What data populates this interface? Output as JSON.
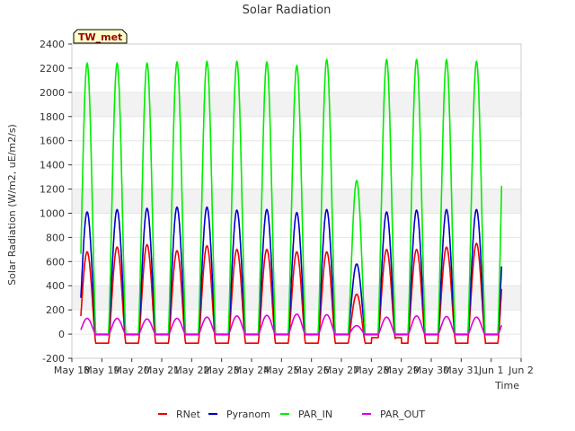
{
  "chart_data": {
    "type": "line",
    "title": "Solar Radiation",
    "xlabel": "Time",
    "ylabel": "Solar Radiation (W/m2, uE/m2/s)",
    "ylim": [
      -200,
      2400
    ],
    "yticks": [
      -200,
      0,
      200,
      400,
      600,
      800,
      1000,
      1200,
      1400,
      1600,
      1800,
      2000,
      2200,
      2400
    ],
    "xticks": [
      "May 18",
      "May 19",
      "May 20",
      "May 21",
      "May 22",
      "May 23",
      "May 24",
      "May 25",
      "May 26",
      "May 27",
      "May 28",
      "May 29",
      "May 30",
      "May 31",
      "Jun 1",
      "Jun 2"
    ],
    "xlim_days": [
      0,
      15
    ],
    "site_label": "TW_met",
    "grid": "horizontal bands",
    "legend_position": "bottom-center",
    "days": [
      "May 18",
      "May 19",
      "May 20",
      "May 21",
      "May 22",
      "May 23",
      "May 24",
      "May 25",
      "May 26",
      "May 27",
      "May 28",
      "May 29",
      "May 30",
      "May 31",
      "Jun 1"
    ],
    "series": [
      {
        "name": "RNet",
        "color": "#ee0000",
        "night": -75,
        "peaks": [
          680,
          720,
          740,
          690,
          730,
          700,
          700,
          680,
          680,
          330,
          700,
          700,
          720,
          750
        ]
      },
      {
        "name": "Pyranom",
        "color": "#0000cc",
        "night": 0,
        "peaks": [
          1010,
          1030,
          1040,
          1050,
          1050,
          1025,
          1030,
          1005,
          1030,
          580,
          1010,
          1025,
          1030,
          1030
        ]
      },
      {
        "name": "PAR_IN",
        "color": "#00ee00",
        "night": 0,
        "peaks": [
          2240,
          2240,
          2240,
          2250,
          2255,
          2255,
          2250,
          2220,
          2270,
          1270,
          2270,
          2270,
          2270,
          2255
        ]
      },
      {
        "name": "PAR_OUT",
        "color": "#dd00dd",
        "night": -5,
        "peaks": [
          130,
          130,
          125,
          130,
          140,
          150,
          155,
          165,
          160,
          70,
          140,
          150,
          145,
          140
        ]
      }
    ]
  }
}
